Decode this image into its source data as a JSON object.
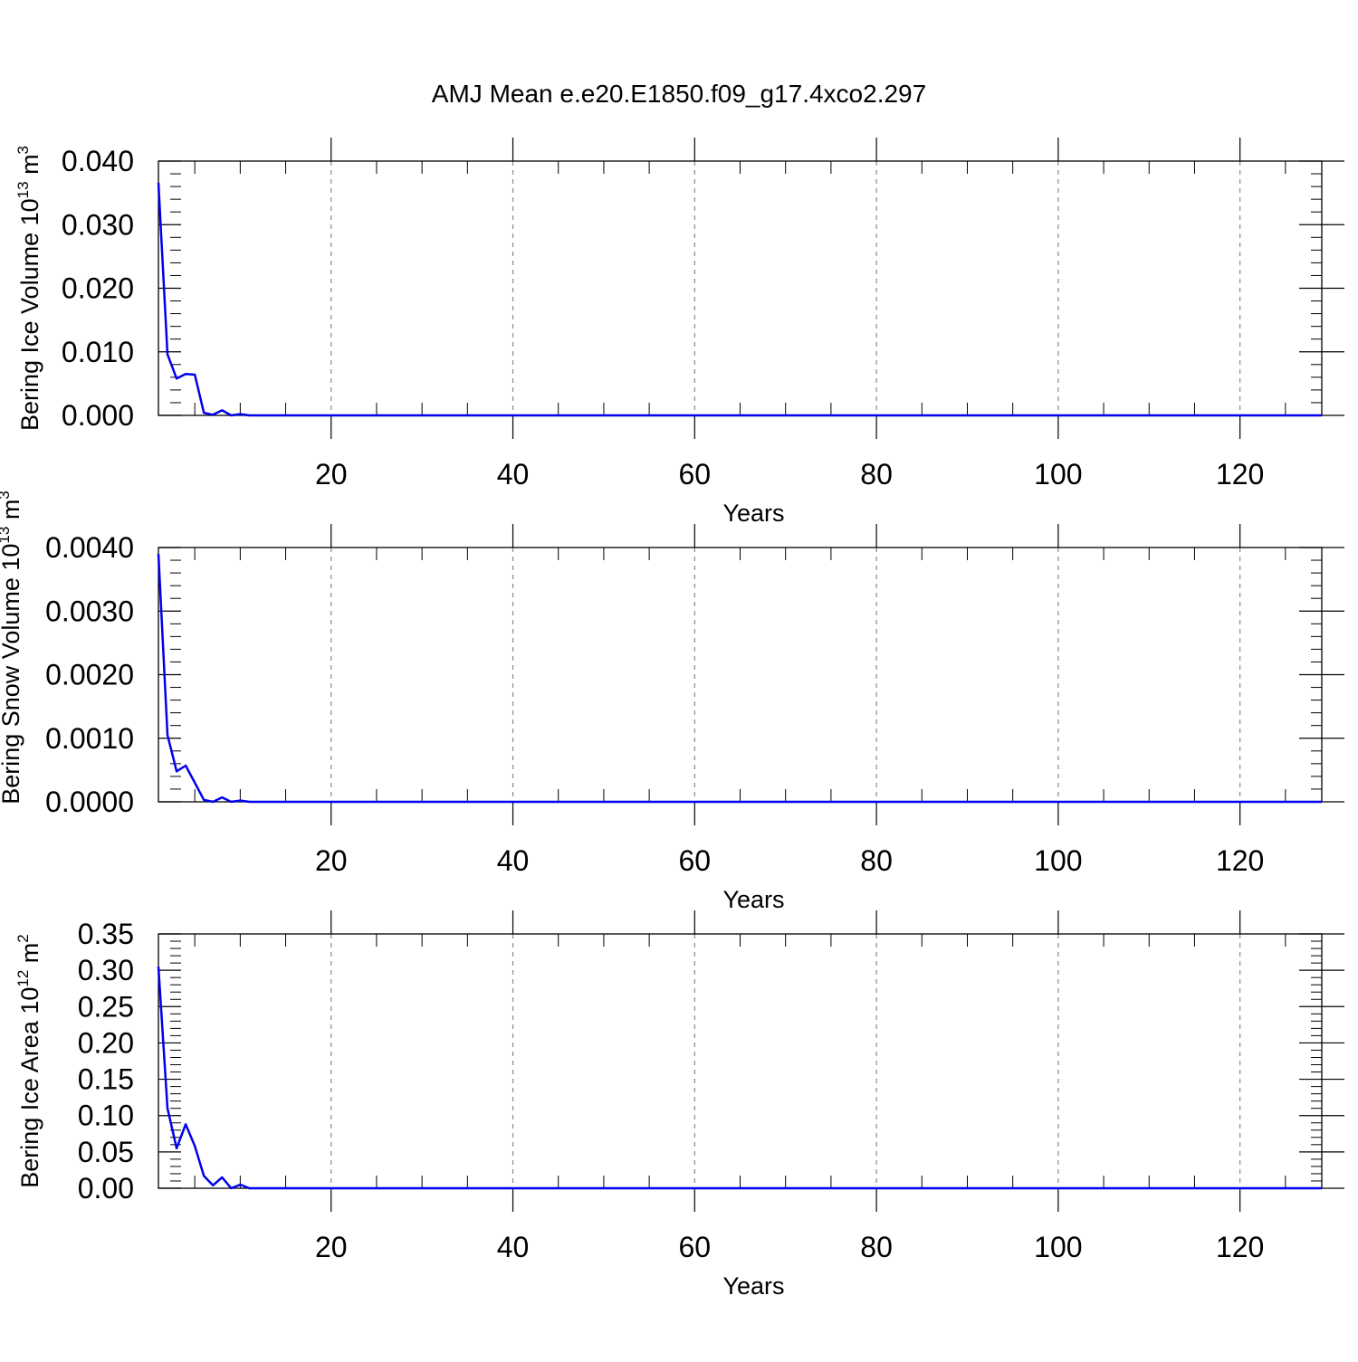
{
  "title": "AMJ Mean e.e20.E1850.f09_g17.4xco2.297",
  "line_color": "#0000ee",
  "grid_color": "#888888",
  "chart_data": [
    {
      "type": "line",
      "ylabel": "Bering Ice Volume 10",
      "ylabel_sup": "13",
      "ylabel_unit": "m",
      "ylabel_unit_sup": "3",
      "xlabel": "Years",
      "xlim": [
        1,
        129
      ],
      "ylim": [
        0,
        0.04
      ],
      "xticks": [
        20,
        40,
        60,
        80,
        100,
        120
      ],
      "xtick_labels": [
        "20",
        "40",
        "60",
        "80",
        "100",
        "120"
      ],
      "yticks": [
        0,
        0.01,
        0.02,
        0.03,
        0.04
      ],
      "ytick_labels": [
        "0.000",
        "0.010",
        "0.020",
        "0.030",
        "0.040"
      ],
      "y_minor_step": 0.002,
      "grid": "x-major dashed",
      "series": [
        {
          "x_start": 1,
          "x_end": 129,
          "values": [
            0.0366,
            0.0096,
            0.0058,
            0.0065,
            0.0064,
            0.0004,
            0.0001,
            0.0008,
            0.0,
            0.0002,
            0.0,
            0.0
          ]
        }
      ]
    },
    {
      "type": "line",
      "ylabel": "Bering Snow Volume 10",
      "ylabel_sup": "13",
      "ylabel_unit": "m",
      "ylabel_unit_sup": "3",
      "xlabel": "Years",
      "xlim": [
        1,
        129
      ],
      "ylim": [
        0,
        0.004
      ],
      "xticks": [
        20,
        40,
        60,
        80,
        100,
        120
      ],
      "xtick_labels": [
        "20",
        "40",
        "60",
        "80",
        "100",
        "120"
      ],
      "yticks": [
        0,
        0.001,
        0.002,
        0.003,
        0.004
      ],
      "ytick_labels": [
        "0.0000",
        "0.0010",
        "0.0020",
        "0.0030",
        "0.0040"
      ],
      "y_minor_step": 0.0002,
      "grid": "x-major dashed",
      "series": [
        {
          "x_start": 1,
          "x_end": 129,
          "values": [
            0.0039,
            0.00105,
            0.00048,
            0.00057,
            0.0003,
            3e-05,
            0.0,
            7e-05,
            0.0,
            2e-05,
            0.0,
            0.0
          ]
        }
      ]
    },
    {
      "type": "line",
      "ylabel": "Bering Ice Area 10",
      "ylabel_sup": "12",
      "ylabel_unit": "m",
      "ylabel_unit_sup": "2",
      "xlabel": "Years",
      "xlim": [
        1,
        129
      ],
      "ylim": [
        0,
        0.35
      ],
      "xticks": [
        20,
        40,
        60,
        80,
        100,
        120
      ],
      "xtick_labels": [
        "20",
        "40",
        "60",
        "80",
        "100",
        "120"
      ],
      "yticks": [
        0,
        0.05,
        0.1,
        0.15,
        0.2,
        0.25,
        0.3,
        0.35
      ],
      "ytick_labels": [
        "0.00",
        "0.05",
        "0.10",
        "0.15",
        "0.20",
        "0.25",
        "0.30",
        "0.35"
      ],
      "y_minor_step": 0.01,
      "grid": "x-major dashed",
      "series": [
        {
          "x_start": 1,
          "x_end": 129,
          "values": [
            0.305,
            0.11,
            0.055,
            0.088,
            0.058,
            0.017,
            0.004,
            0.015,
            0.0,
            0.005,
            0.0,
            0.0,
            0.0
          ]
        }
      ]
    }
  ]
}
